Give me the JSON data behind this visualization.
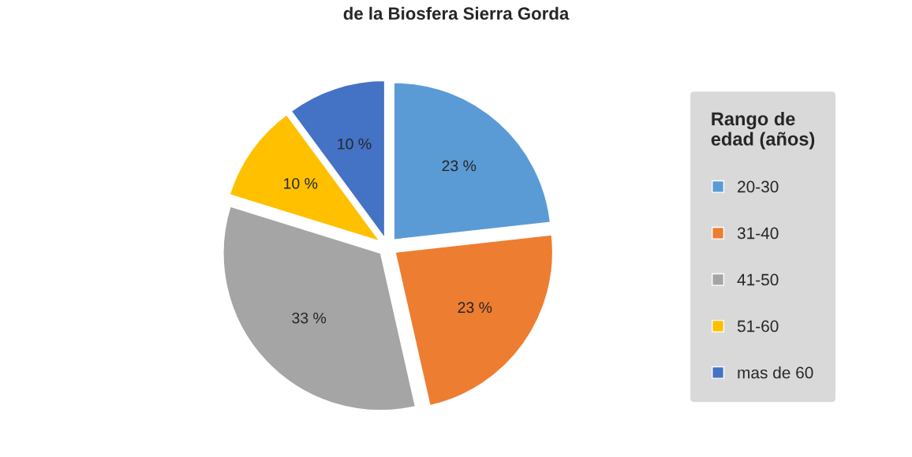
{
  "chart_data": {
    "type": "pie",
    "title": "de la Biosfera Sierra Gorda",
    "legend_title": "Rango de\nedad (años)",
    "categories": [
      "20-30",
      "31-40",
      "41-50",
      "51-60",
      "mas de 60"
    ],
    "values": [
      23,
      23,
      33,
      10,
      10
    ],
    "colors": [
      "#5b9bd5",
      "#ed7d31",
      "#a5a5a5",
      "#ffc000",
      "#4472c4"
    ],
    "value_labels": [
      "23 %",
      "23 %",
      "33 %",
      "10 %",
      "10 %"
    ],
    "legend": "right"
  }
}
